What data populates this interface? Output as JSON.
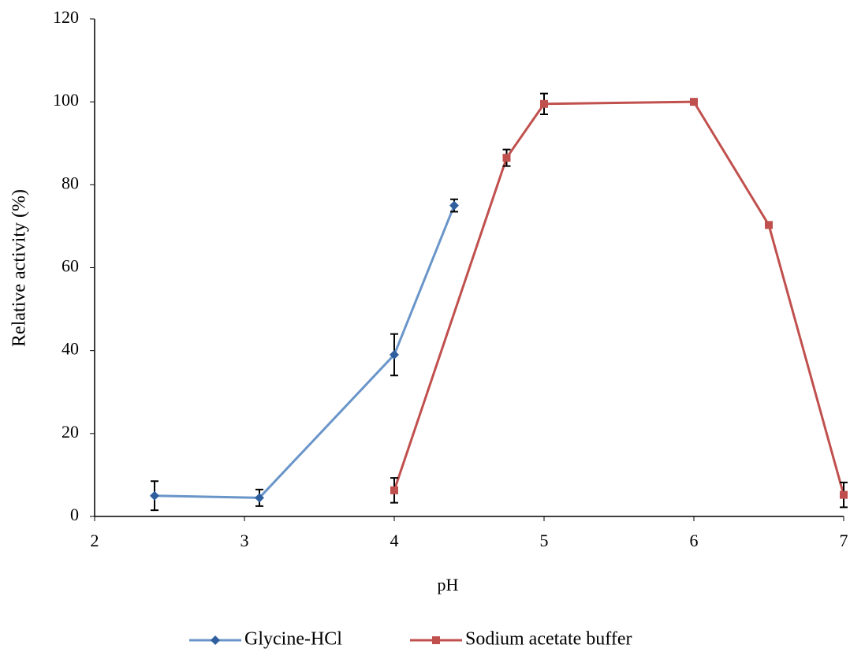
{
  "chart_data": {
    "type": "line",
    "x_label": "pH",
    "y_label": "Relative activity  (%)",
    "xlim": [
      2,
      7
    ],
    "xticks": [
      2,
      3,
      4,
      5,
      6,
      7
    ],
    "ylim": [
      0,
      120
    ],
    "yticks": [
      0,
      20,
      40,
      60,
      80,
      100,
      120
    ],
    "legend": "bottom",
    "series": [
      {
        "name": "Glycine-HCl",
        "color": "#6a95c9",
        "marker_color": "#2f5f9e",
        "marker": "diamond",
        "x": [
          2.4,
          3.1,
          4.0,
          4.4
        ],
        "values": [
          5,
          4.5,
          39,
          75
        ],
        "errors": [
          3.5,
          2,
          5,
          1.5
        ]
      },
      {
        "name": "Sodium acetate buffer",
        "color": "#c0504d",
        "marker_color": "#c0504d",
        "marker": "square",
        "x": [
          4.0,
          4.75,
          5.0,
          6.0,
          6.5,
          7.0
        ],
        "values": [
          6.3,
          86.5,
          99.5,
          100,
          70.3,
          5.2
        ],
        "errors": [
          3,
          2,
          2.5,
          0,
          0,
          3
        ]
      }
    ]
  }
}
